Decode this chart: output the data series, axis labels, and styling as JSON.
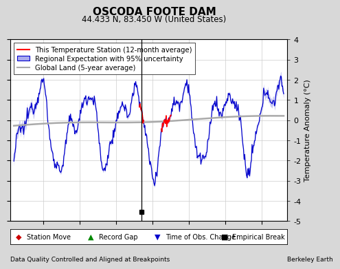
{
  "title": "OSCODA FOOTE DAM",
  "subtitle": "44.433 N, 83.450 W (United States)",
  "ylabel": "Temperature Anomaly (°C)",
  "xlabel_bottom_left": "Data Quality Controlled and Aligned at Breakpoints",
  "xlabel_bottom_right": "Berkeley Earth",
  "ylim": [
    -5,
    4
  ],
  "xlim": [
    1915.5,
    1953.5
  ],
  "xticks": [
    1920,
    1925,
    1930,
    1935,
    1940,
    1945,
    1950
  ],
  "yticks_right": [
    -5,
    -4,
    -3,
    -2,
    -1,
    0,
    1,
    2,
    3,
    4
  ],
  "bg_color": "#d8d8d8",
  "plot_bg_color": "#ffffff",
  "grid_color": "#cccccc",
  "blue_line_color": "#0000cc",
  "blue_fill_color": "#aaaaee",
  "red_line_color": "#ff0000",
  "gray_line_color": "#aaaaaa",
  "vertical_line_x": 1933.5,
  "vertical_line_color": "#000000",
  "empirical_break_x": 1933.5,
  "empirical_break_y": -4.55,
  "legend_labels": [
    "This Temperature Station (12-month average)",
    "Regional Expectation with 95% uncertainty",
    "Global Land (5-year average)"
  ],
  "bottom_legend_labels": [
    "Station Move",
    "Record Gap",
    "Time of Obs. Change",
    "Empirical Break"
  ]
}
